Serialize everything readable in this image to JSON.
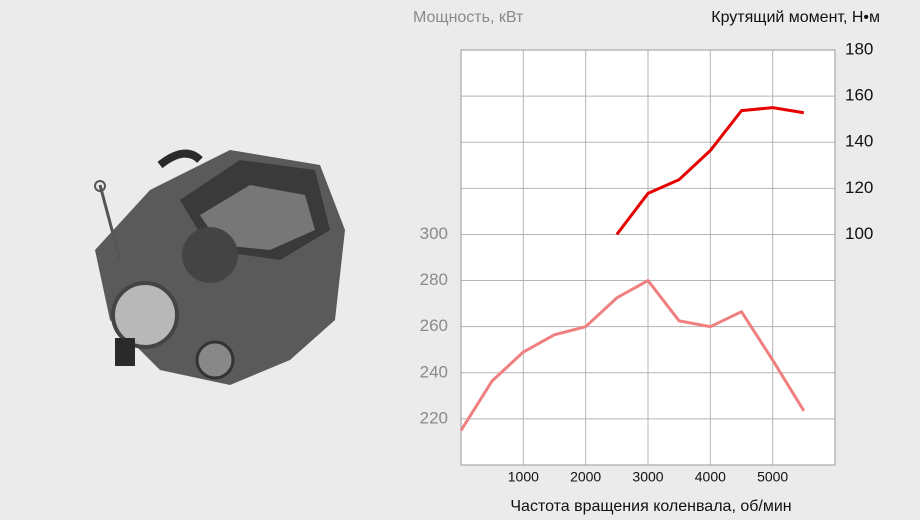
{
  "chart_data": {
    "type": "line",
    "y_title": "Мощность, кВт",
    "y2_title": "Крутящий момент, Н•м",
    "x_title": "Частота вращения коленвала, об/мин",
    "x": [
      0,
      500,
      1000,
      1500,
      2000,
      2500,
      3000,
      3500,
      4000,
      4500,
      5000,
      5500
    ],
    "xlim": [
      0,
      6000
    ],
    "xticks": [
      1000,
      2000,
      3000,
      4000,
      5000
    ],
    "ylim": [
      200,
      380
    ],
    "yticks": [
      220,
      240,
      260,
      280,
      300
    ],
    "y2lim": [
      0,
      180
    ],
    "y2ticks": [
      100,
      120,
      140,
      160,
      180
    ],
    "grid": true,
    "series": [
      {
        "name": "Мощность",
        "color": "#f08080",
        "values": [
          215,
          236.5,
          249,
          256.5,
          260,
          272.5,
          280,
          262.5,
          260,
          266.5,
          245.5,
          223.5
        ]
      },
      {
        "name": "Крутящий момент",
        "color": "#e60000",
        "axis": "y2",
        "values": [
          null,
          null,
          null,
          null,
          null,
          100,
          117.8,
          123.8,
          136.4,
          153.7,
          155,
          152.8
        ]
      }
    ]
  }
}
